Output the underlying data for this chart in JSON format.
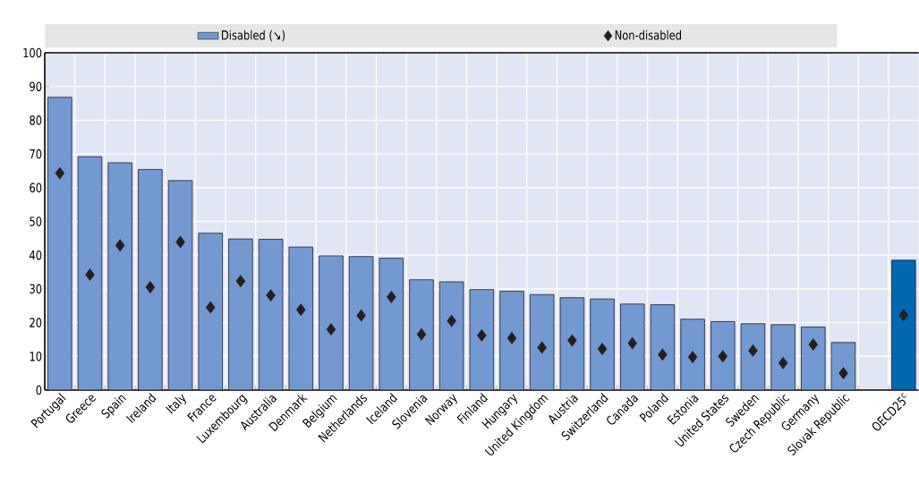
{
  "chart_data": {
    "type": "bar",
    "categories": [
      "Portugal",
      "Greece",
      "Spain",
      "Ireland",
      "Italy",
      "France",
      "Luxembourg",
      "Australia",
      "Denmark",
      "Belgium",
      "Netherlands",
      "Iceland",
      "Slovenia",
      "Norway",
      "Finland",
      "Hungary",
      "United Kingdom",
      "Austria",
      "Switzerland",
      "Canada",
      "Poland",
      "Estonia",
      "United States",
      "Sweden",
      "Czech Republic",
      "Germany",
      "Slovak Republic",
      null,
      "OECD25$^{c}$"
    ],
    "series": [
      {
        "name": "Disabled (↘)",
        "colors": [
          "#7399d1",
          "#7399d1",
          "#7399d1",
          "#7399d1",
          "#7399d1",
          "#7399d1",
          "#7399d1",
          "#7399d1",
          "#7399d1",
          "#7399d1",
          "#7399d1",
          "#7399d1",
          "#7399d1",
          "#7399d1",
          "#7399d1",
          "#7399d1",
          "#7399d1",
          "#7399d1",
          "#7399d1",
          "#7399d1",
          "#7399d1",
          "#7399d1",
          "#7399d1",
          "#7399d1",
          "#7399d1",
          "#7399d1",
          "#7399d1",
          null,
          "#0067b1"
        ],
        "values": [
          86.8,
          69.2,
          67.4,
          65.4,
          62.1,
          46.5,
          44.8,
          44.7,
          42.4,
          39.8,
          39.6,
          39.1,
          32.7,
          32.1,
          29.8,
          29.3,
          28.3,
          27.4,
          27.0,
          25.5,
          25.3,
          21.0,
          20.3,
          19.7,
          19.4,
          18.7,
          14.1,
          null,
          38.5
        ]
      },
      {
        "name": "Non-disabled",
        "type": "scatter",
        "color": "#231f20",
        "marker": "diamond",
        "values": [
          64.3,
          34.2,
          42.9,
          30.5,
          43.9,
          24.5,
          32.3,
          28.1,
          23.8,
          18.0,
          22.1,
          27.6,
          16.5,
          20.5,
          16.2,
          15.4,
          12.6,
          14.7,
          12.2,
          13.9,
          10.5,
          9.8,
          10.0,
          11.7,
          8.0,
          13.5,
          5.0,
          null,
          22.2
        ]
      }
    ],
    "ylim": [
      0,
      100
    ],
    "yticks": [
      0,
      10,
      20,
      30,
      40,
      50,
      60,
      70,
      80,
      90,
      100
    ],
    "grid": true,
    "legend": "top"
  }
}
